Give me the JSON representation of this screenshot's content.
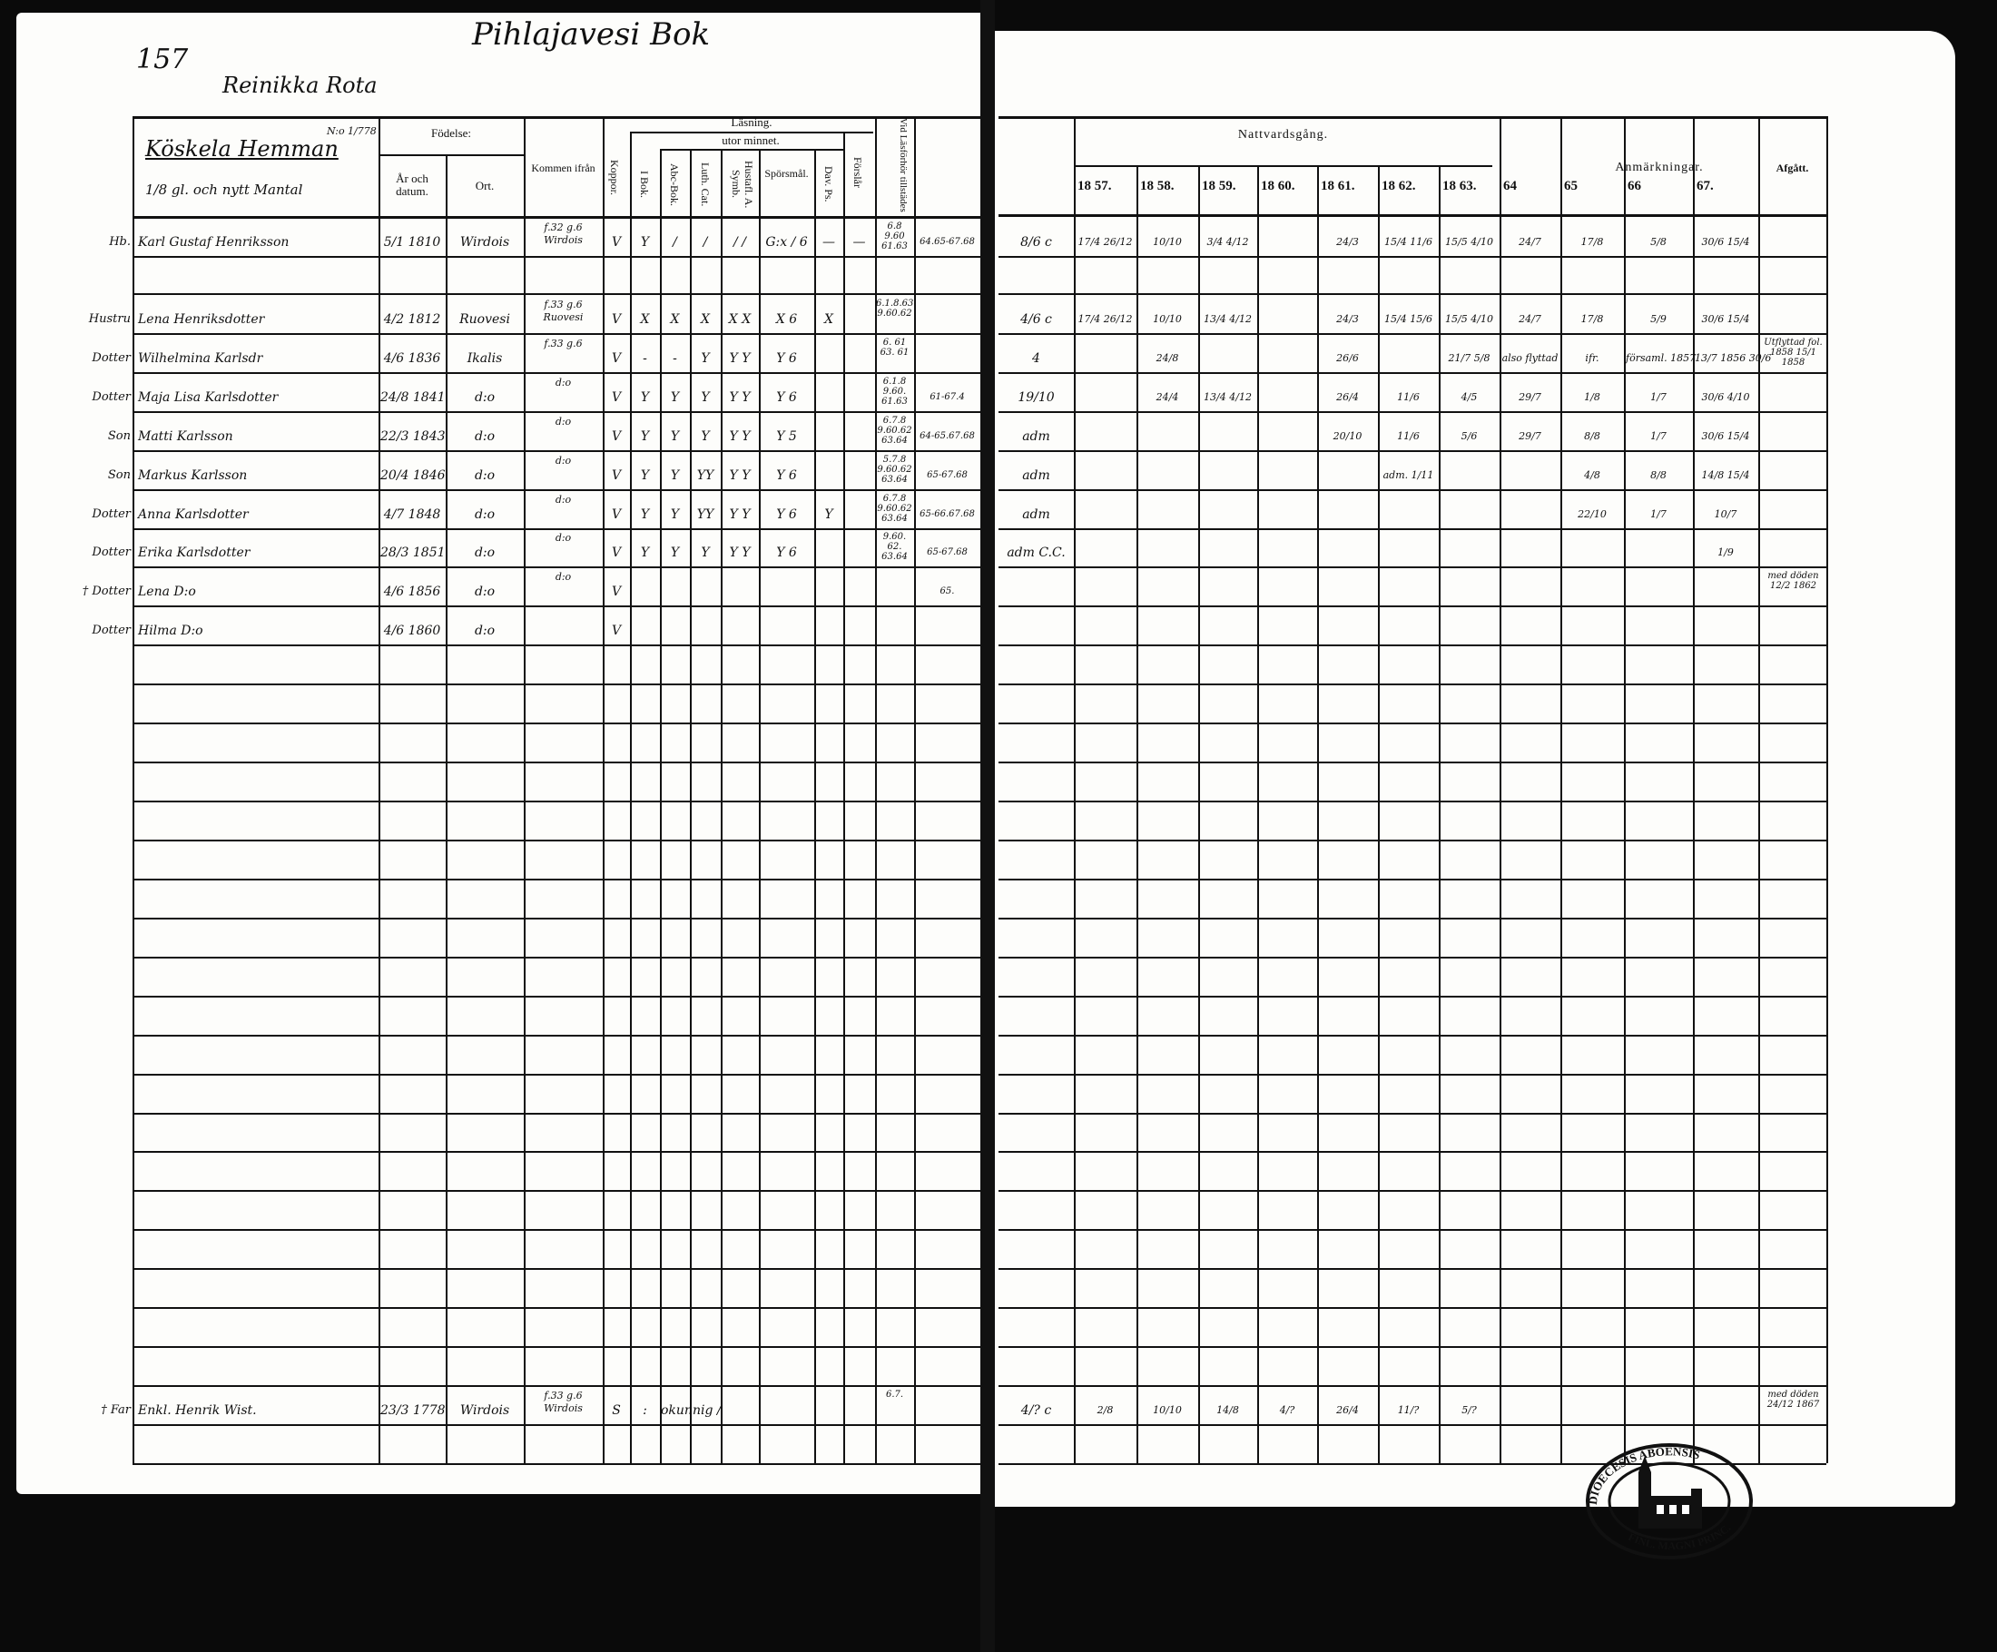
{
  "left_page": {
    "page_number": "157",
    "parish": "Pihlajavesi Bok",
    "district": "Reinikka Rota",
    "farm_name": "Köskela Hemman",
    "farm_note": "N:o 1/778",
    "farm_share": "1/8 gl. och nytt Mantal",
    "headers": {
      "birth": "Födelse:",
      "year_date": "År och datum.",
      "place": "Ort.",
      "came_from": "Kommen ifrån",
      "smallpox": "Koppor.",
      "reading": "Läsning.",
      "by_heart": "utor minnet.",
      "i_bok": "I Bok.",
      "abc_bok": "Abc-Bok.",
      "luth_cat": "Luth. Cat.",
      "husf_symb": "Hustafl. A. Symb.",
      "questions": "Spörsmål.",
      "dav_ps": "Dav. Ps.",
      "forslar": "Förslår",
      "present": "Vid Läsförhör tillstädes"
    }
  },
  "right_page": {
    "headers": {
      "communion": "Nattvardsgång.",
      "years": [
        "18 57.",
        "18 58.",
        "18 59.",
        "18 60.",
        "18 61.",
        "18 62.",
        "18 63.",
        "64",
        "65",
        "66",
        "67."
      ],
      "remarks": "Anmärkningar.",
      "departed": "Afgått."
    },
    "seal_text": "DIOECESIS ABOENSIS · MAGNI PRINC. FINL."
  },
  "members": [
    {
      "row": 0,
      "relation": "Hb.",
      "name": "Karl Gustaf Henriksson",
      "birth": "5/1 1810",
      "place": "Wirdois",
      "from": "f.32 g.6 Wirdois",
      "koppor": "V",
      "reading": [
        "Y",
        "/",
        "/",
        "/ /",
        "G:x / 6",
        "—",
        "—"
      ],
      "present": "6.8 9.60 61.63",
      "extra": "64.65-67.68",
      "right": {
        "first": "8/6 c",
        "years": [
          "17/4 26/12",
          "10/10",
          "3/4 4/12",
          "",
          "24/3",
          "15/4 11/6",
          "15/5 4/10",
          "24/7",
          "17/8",
          "5/8",
          "30/6 15/4"
        ],
        "departed": ""
      }
    },
    {
      "row": 1,
      "relation": "Hustru",
      "name": "Lena Henriksdotter",
      "birth": "4/2 1812",
      "place": "Ruovesi",
      "from": "f.33 g.6 Ruovesi",
      "koppor": "V",
      "reading": [
        "X",
        "X",
        "X",
        "X X",
        "X 6",
        "X",
        ""
      ],
      "present": "6.1.8.63 9.60.62",
      "extra": "",
      "right": {
        "first": "4/6 c",
        "years": [
          "17/4 26/12",
          "10/10",
          "13/4 4/12",
          "",
          "24/3",
          "15/4 15/6",
          "15/5 4/10",
          "24/7",
          "17/8",
          "5/9",
          "30/6 15/4"
        ],
        "departed": ""
      }
    },
    {
      "row": 2,
      "relation": "Dotter",
      "name": "Wilhelmina Karlsdr",
      "birth": "4/6 1836",
      "place": "Ikalis",
      "from": "f.33 g.6",
      "koppor": "V",
      "reading": [
        "-",
        "-",
        "Y",
        "Y Y",
        "Y 6",
        "",
        ""
      ],
      "present": "6. 61 63. 61",
      "extra": "",
      "right": {
        "first": "4",
        "years": [
          "",
          "24/8",
          "",
          "",
          "26/6",
          "",
          "21/7 5/8",
          "also flyttad",
          "ifr.",
          "församl. 1857",
          "13/7 1856 30/6"
        ],
        "departed": "Utflyttad fol. 1858 15/1 1858"
      }
    },
    {
      "row": 3,
      "relation": "Dotter",
      "name": "Maja Lisa Karlsdotter",
      "birth": "24/8 1841",
      "place": "d:o",
      "from": "d:o",
      "koppor": "V",
      "reading": [
        "Y",
        "Y",
        "Y",
        "Y Y",
        "Y 6",
        "",
        ""
      ],
      "present": "6.1.8 9.60. 61.63",
      "extra": "61-67.4",
      "right": {
        "first": "19/10",
        "years": [
          "",
          "24/4",
          "13/4 4/12",
          "",
          "26/4",
          "11/6",
          "4/5",
          "29/7",
          "1/8",
          "1/7",
          "30/6 4/10"
        ],
        "departed": ""
      }
    },
    {
      "row": 4,
      "relation": "Son",
      "name": "Matti Karlsson",
      "birth": "22/3 1843",
      "place": "d:o",
      "from": "d:o",
      "koppor": "V",
      "reading": [
        "Y",
        "Y",
        "Y",
        "Y Y",
        "Y 5",
        "",
        ""
      ],
      "present": "6.7.8 9.60.62 63.64",
      "extra": "64-65.67.68",
      "right": {
        "first": "adm",
        "years": [
          "",
          "",
          "",
          "",
          "20/10",
          "11/6",
          "5/6",
          "29/7",
          "8/8",
          "1/7",
          "30/6 15/4"
        ],
        "departed": ""
      }
    },
    {
      "row": 5,
      "relation": "Son",
      "name": "Markus Karlsson",
      "birth": "20/4 1846",
      "place": "d:o",
      "from": "d:o",
      "koppor": "V",
      "reading": [
        "Y",
        "Y",
        "YY",
        "Y Y",
        "Y 6",
        "",
        ""
      ],
      "present": "5.7.8 9.60.62 63.64",
      "extra": "65-67.68",
      "right": {
        "first": "adm",
        "years": [
          "",
          "",
          "",
          "",
          "",
          "adm. 1/11",
          "",
          "",
          "4/8",
          "8/8",
          "14/8 15/4"
        ],
        "departed": ""
      }
    },
    {
      "row": 6,
      "relation": "Dotter",
      "name": "Anna Karlsdotter",
      "birth": "4/7 1848",
      "place": "d:o",
      "from": "d:o",
      "koppor": "V",
      "reading": [
        "Y",
        "Y",
        "YY",
        "Y Y",
        "Y 6",
        "Y",
        ""
      ],
      "present": "6.7.8 9.60.62 63.64",
      "extra": "65-66.67.68",
      "right": {
        "first": "adm",
        "years": [
          "",
          "",
          "",
          "",
          "",
          "",
          "",
          "",
          "22/10",
          "1/7",
          "10/7"
        ],
        "departed": ""
      }
    },
    {
      "row": 7,
      "relation": "Dotter",
      "name": "Erika Karlsdotter",
      "birth": "28/3 1851",
      "place": "d:o",
      "from": "d:o",
      "koppor": "V",
      "reading": [
        "Y",
        "Y",
        "Y",
        "Y Y",
        "Y 6",
        "",
        ""
      ],
      "present": "9.60. 62. 63.64",
      "extra": "65-67.68",
      "right": {
        "first": "adm C.C.",
        "years": [
          "",
          "",
          "",
          "",
          "",
          "",
          "",
          "",
          "",
          "",
          "1/9"
        ],
        "departed": ""
      }
    },
    {
      "row": 8,
      "relation": "† Dotter",
      "name": "Lena   D:o",
      "birth": "4/6 1856",
      "place": "d:o",
      "from": "d:o",
      "koppor": "V",
      "reading": [
        "",
        "",
        "",
        "",
        "",
        "",
        ""
      ],
      "present": "",
      "extra": "65.",
      "right": {
        "first": "",
        "years": [
          "",
          "",
          "",
          "",
          "",
          "",
          "",
          "",
          "",
          "",
          ""
        ],
        "departed": "med döden 12/2 1862"
      }
    },
    {
      "row": 9,
      "relation": "Dotter",
      "name": "Hilma   D:o",
      "birth": "4/6 1860",
      "place": "d:o",
      "from": "",
      "koppor": "V",
      "reading": [
        "",
        "",
        "",
        "",
        "",
        "",
        ""
      ],
      "present": "",
      "extra": "",
      "right": {
        "first": "",
        "years": [
          "",
          "",
          "",
          "",
          "",
          "",
          "",
          "",
          "",
          "",
          ""
        ],
        "departed": ""
      }
    },
    {
      "row": 29,
      "relation": "† Far",
      "name": "Enkl. Henrik Wist.",
      "birth": "23/3 1778",
      "place": "Wirdois",
      "from": "f.33 g.6 Wirdois",
      "koppor": "S",
      "reading": [
        ":",
        "okunnig /",
        "",
        "",
        "",
        "",
        ""
      ],
      "present": "6.7.",
      "extra": "",
      "right": {
        "first": "4/? c",
        "years": [
          "2/8",
          "10/10",
          "14/8",
          "4/?",
          "26/4",
          "11/?",
          "5/?",
          "",
          "",
          "",
          ""
        ],
        "departed": "med döden 24/12 1867"
      }
    }
  ]
}
